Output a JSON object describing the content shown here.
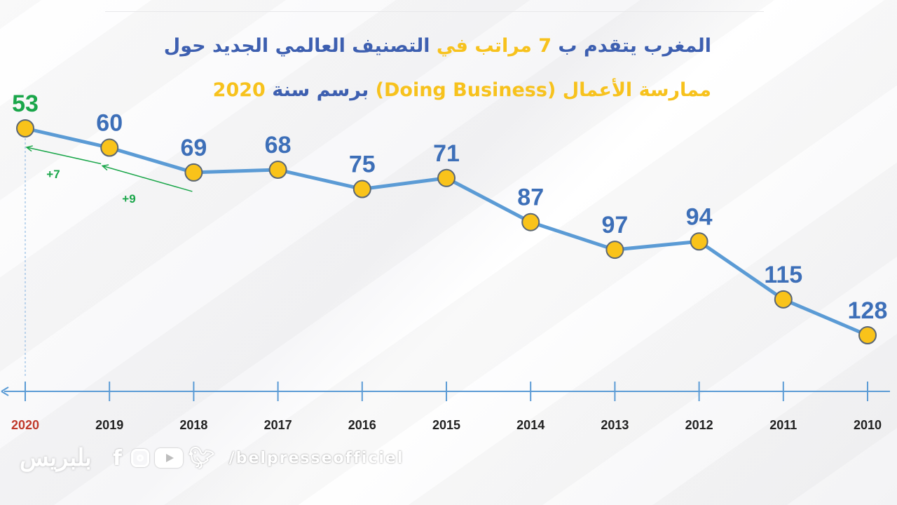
{
  "title": {
    "line1": [
      {
        "text": "المغرب يتقدم ب ",
        "color": "#3d5fb0"
      },
      {
        "text": " 7 مراتب",
        "color": "#f7c21d"
      },
      {
        "text": " في",
        "color": "#f7c21d"
      },
      {
        "text": " التصنيف العالمي الجديد حول",
        "color": "#3d5fb0"
      }
    ],
    "line2": [
      {
        "text": "ممارسة الأعمال",
        "color": "#f7c21d"
      },
      {
        "text": " (Doing Business)",
        "color": "#f7c21d"
      },
      {
        "text": " برسم سنة",
        "color": "#3d5fb0"
      },
      {
        "text": " 2020",
        "color": "#f7c21d"
      }
    ]
  },
  "chart_data": {
    "type": "line",
    "categories": [
      "2020",
      "2019",
      "2018",
      "2017",
      "2016",
      "2015",
      "2014",
      "2013",
      "2012",
      "2011",
      "2010"
    ],
    "values": [
      53,
      60,
      69,
      68,
      75,
      71,
      87,
      97,
      94,
      115,
      128
    ],
    "data_labels": [
      "53",
      "60",
      "69",
      "68",
      "75",
      "71",
      "87",
      "97",
      "94",
      "115",
      "128"
    ],
    "highlight": {
      "category": "2020",
      "label_color": "#1aa64a",
      "tick_color": "#c0392b"
    },
    "annotations": [
      {
        "text": "+7",
        "from": "2019",
        "to": "2020",
        "color": "#1aa64a"
      },
      {
        "text": "+9",
        "from": "2018",
        "to": "2019",
        "color": "#1aa64a"
      }
    ],
    "colors": {
      "line": "#5b9bd5",
      "marker_fill": "#f9c31a",
      "marker_stroke": "#5a6675",
      "label": "#3d6fb8",
      "axis": "#5b9bd5"
    },
    "grid": false
  },
  "footer": {
    "logo": "بلبريس",
    "icons": [
      "facebook-icon",
      "instagram-icon",
      "youtube-icon",
      "twitter-icon"
    ],
    "handle": "/belpresseofficiel"
  }
}
